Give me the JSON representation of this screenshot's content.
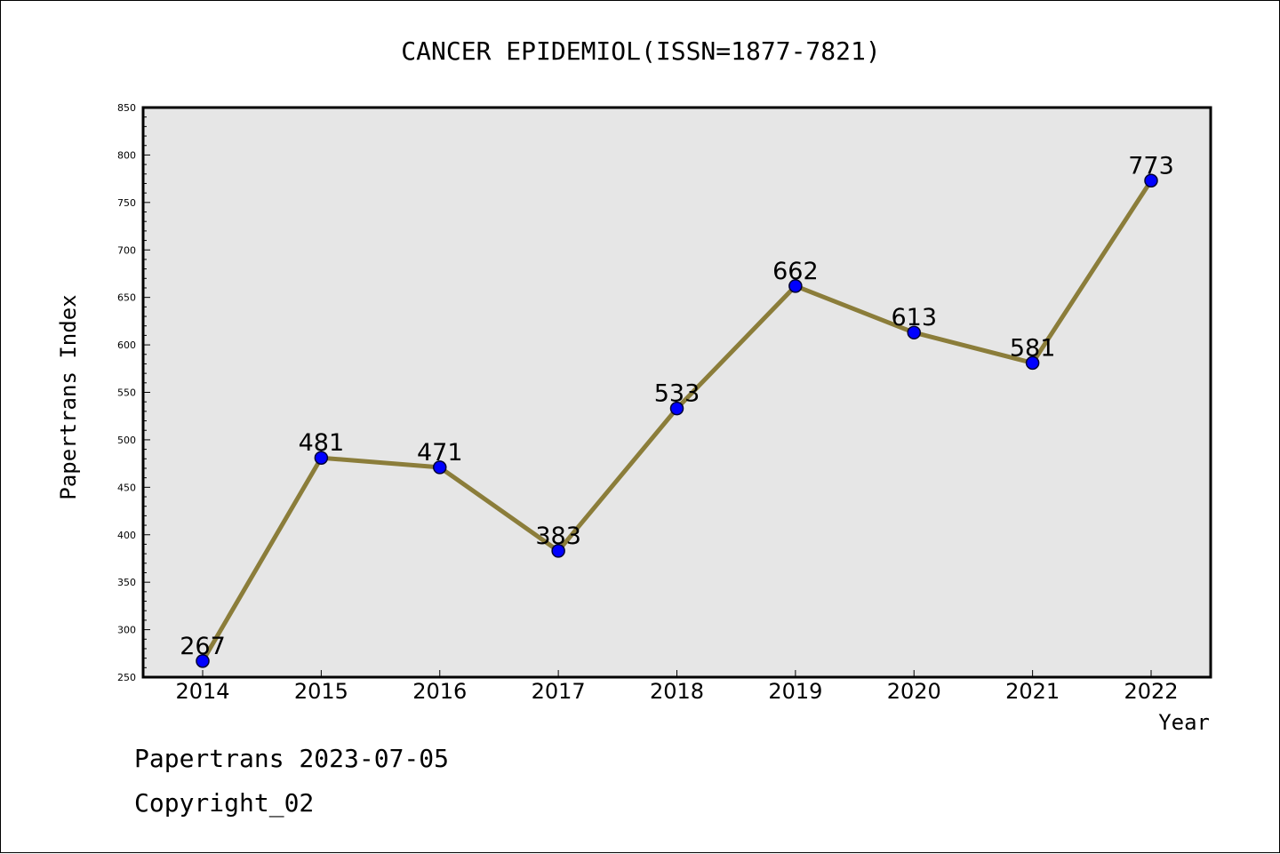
{
  "chart_data": {
    "type": "line",
    "title": "CANCER EPIDEMIOL(ISSN=1877-7821)",
    "xlabel": "Year",
    "ylabel": "Papertrans Index",
    "x": [
      "2014",
      "2015",
      "2016",
      "2017",
      "2018",
      "2019",
      "2020",
      "2021",
      "2022"
    ],
    "values": [
      267,
      481,
      471,
      383,
      533,
      662,
      613,
      581,
      773
    ],
    "data_labels": [
      "267",
      "481",
      "471",
      "383",
      "533",
      "662",
      "613",
      "581",
      "773"
    ],
    "ylim": [
      250,
      850
    ],
    "yticks": [
      "250",
      "300",
      "350",
      "400",
      "450",
      "500",
      "550",
      "600",
      "650",
      "700",
      "750",
      "800",
      "850"
    ],
    "grid": false,
    "colors": {
      "line": "#8b7d3a",
      "marker": "#0000ff",
      "plot_background": "#e6e6e6"
    }
  },
  "footer": {
    "date_line": "Papertrans 2023-07-05",
    "copyright": "Copyright_02"
  }
}
